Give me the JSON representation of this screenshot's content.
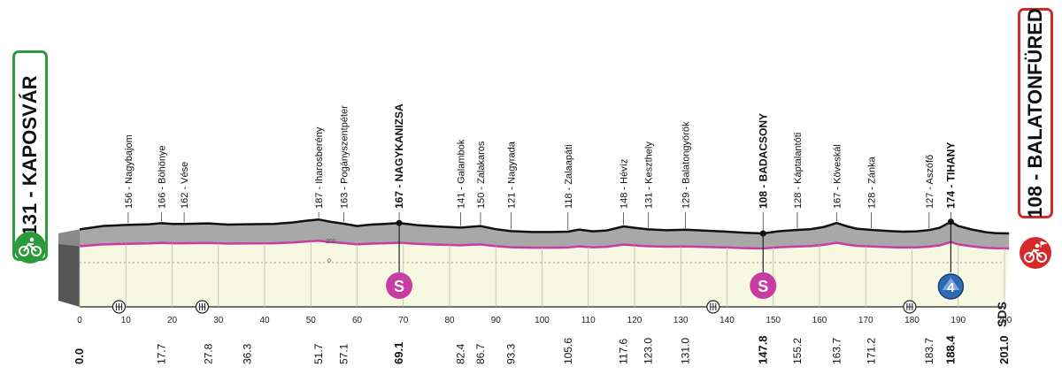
{
  "start": {
    "label": "131 - KAPOSVÁR",
    "color": "#2a9a3a",
    "icon": "bicycle-icon"
  },
  "finish": {
    "label": "108 - BALATONFÜRED",
    "color": "#d62a2a",
    "icon": "bicycle-finish-icon"
  },
  "brand": {
    "label": "SDS"
  },
  "chart_data": {
    "type": "area",
    "title": "",
    "xlabel": "",
    "ylabel": "",
    "xlim": [
      0,
      200
    ],
    "x_ticks": [
      0,
      10,
      20,
      30,
      40,
      50,
      60,
      70,
      80,
      90,
      100,
      110,
      120,
      130,
      140,
      150,
      160,
      170,
      180,
      190,
      200
    ],
    "elevation_axis_labels": [
      "200",
      "0"
    ],
    "locations": [
      {
        "km": 10.5,
        "label": "156 - Nagybajom",
        "highlight": false
      },
      {
        "km": 17.7,
        "label": "166 - Böhönye",
        "highlight": false
      },
      {
        "km": 22.6,
        "label": "162 - Vése",
        "highlight": false
      },
      {
        "km": 51.7,
        "label": "187 - Iharosberény",
        "highlight": false
      },
      {
        "km": 57.1,
        "label": "163 - Pogányszentpéter",
        "highlight": false
      },
      {
        "km": 69.1,
        "label": "167 - NAGYKANIZSA",
        "highlight": true
      },
      {
        "km": 82.4,
        "label": "141 - Galambok",
        "highlight": false
      },
      {
        "km": 86.7,
        "label": "150 - Zalakaros",
        "highlight": false
      },
      {
        "km": 93.3,
        "label": "121 - Nagyrada",
        "highlight": false
      },
      {
        "km": 105.6,
        "label": "118 - Zalaapáti",
        "highlight": false
      },
      {
        "km": 117.6,
        "label": "148 - Hévíz",
        "highlight": false
      },
      {
        "km": 123.0,
        "label": "131 - Keszthely",
        "highlight": false
      },
      {
        "km": 131.0,
        "label": "129 - Balatongyörök",
        "highlight": false
      },
      {
        "km": 147.8,
        "label": "108 - BADACSONY",
        "highlight": true
      },
      {
        "km": 155.2,
        "label": "128 - Káptalantóti",
        "highlight": false
      },
      {
        "km": 163.7,
        "label": "167 - Köveskál",
        "highlight": false
      },
      {
        "km": 171.2,
        "label": "128 - Zánka",
        "highlight": false
      },
      {
        "km": 183.7,
        "label": "127 - Aszófő",
        "highlight": false
      },
      {
        "km": 188.4,
        "label": "174 - TIHANY",
        "highlight": true
      }
    ],
    "distance_labels": [
      {
        "km": 0.0,
        "label": "0.0",
        "bold": true
      },
      {
        "km": 17.7,
        "label": "17.7",
        "bold": false
      },
      {
        "km": 27.8,
        "label": "27.8",
        "bold": false
      },
      {
        "km": 36.3,
        "label": "36.3",
        "bold": false
      },
      {
        "km": 51.7,
        "label": "51.7",
        "bold": false
      },
      {
        "km": 57.1,
        "label": "57.1",
        "bold": false
      },
      {
        "km": 69.1,
        "label": "69.1",
        "bold": true
      },
      {
        "km": 82.4,
        "label": "82.4",
        "bold": false
      },
      {
        "km": 86.7,
        "label": "86.7",
        "bold": false
      },
      {
        "km": 93.3,
        "label": "93.3",
        "bold": false
      },
      {
        "km": 105.6,
        "label": "105.6",
        "bold": false
      },
      {
        "km": 117.6,
        "label": "117.6",
        "bold": false
      },
      {
        "km": 123.0,
        "label": "123.0",
        "bold": false
      },
      {
        "km": 131.0,
        "label": "131.0",
        "bold": false
      },
      {
        "km": 147.8,
        "label": "147.8",
        "bold": true
      },
      {
        "km": 155.2,
        "label": "155.2",
        "bold": false
      },
      {
        "km": 163.7,
        "label": "163.7",
        "bold": false
      },
      {
        "km": 171.2,
        "label": "171.2",
        "bold": false
      },
      {
        "km": 183.7,
        "label": "183.7",
        "bold": false
      },
      {
        "km": 188.4,
        "label": "188.4",
        "bold": true
      },
      {
        "km": 201.0,
        "label": "201.0",
        "bold": true
      }
    ],
    "elevation": [
      [
        0,
        131
      ],
      [
        5,
        150
      ],
      [
        10,
        156
      ],
      [
        15,
        160
      ],
      [
        17.7,
        166
      ],
      [
        20,
        162
      ],
      [
        22.6,
        162
      ],
      [
        27.8,
        165
      ],
      [
        32,
        158
      ],
      [
        36.3,
        160
      ],
      [
        42,
        162
      ],
      [
        46,
        170
      ],
      [
        49,
        180
      ],
      [
        51.7,
        187
      ],
      [
        54,
        175
      ],
      [
        57.1,
        163
      ],
      [
        60,
        150
      ],
      [
        63,
        158
      ],
      [
        66,
        162
      ],
      [
        69.1,
        167
      ],
      [
        73,
        155
      ],
      [
        77,
        148
      ],
      [
        80,
        144
      ],
      [
        82.4,
        141
      ],
      [
        86.7,
        150
      ],
      [
        90,
        132
      ],
      [
        93.3,
        121
      ],
      [
        98,
        116
      ],
      [
        102,
        116
      ],
      [
        105.6,
        118
      ],
      [
        108,
        130
      ],
      [
        111,
        120
      ],
      [
        114,
        125
      ],
      [
        117.6,
        148
      ],
      [
        120,
        140
      ],
      [
        123,
        131
      ],
      [
        127,
        126
      ],
      [
        131,
        129
      ],
      [
        135,
        124
      ],
      [
        140,
        118
      ],
      [
        144,
        112
      ],
      [
        147.8,
        108
      ],
      [
        151,
        120
      ],
      [
        155.2,
        128
      ],
      [
        158,
        132
      ],
      [
        161,
        145
      ],
      [
        163.7,
        167
      ],
      [
        166,
        148
      ],
      [
        168,
        135
      ],
      [
        171.2,
        128
      ],
      [
        175,
        122
      ],
      [
        178,
        118
      ],
      [
        181,
        120
      ],
      [
        183.7,
        127
      ],
      [
        186,
        140
      ],
      [
        188.4,
        174
      ],
      [
        190,
        150
      ],
      [
        193,
        130
      ],
      [
        196,
        115
      ],
      [
        198,
        110
      ],
      [
        201,
        108
      ]
    ],
    "sprints": [
      {
        "km": 69.1,
        "label": "S"
      },
      {
        "km": 147.8,
        "label": "S"
      }
    ],
    "kom": [
      {
        "km": 188.4,
        "label": "4"
      }
    ],
    "feed_zones": [
      8.5,
      26.5,
      137,
      179.5
    ],
    "colors": {
      "top_fill": "#a8a8a8",
      "top_line": "#111111",
      "bottom_fill": "#f6f8e2",
      "pink": "#c83ca3",
      "sprint": "#c83ca3",
      "kom": "#2f6ab5"
    }
  }
}
